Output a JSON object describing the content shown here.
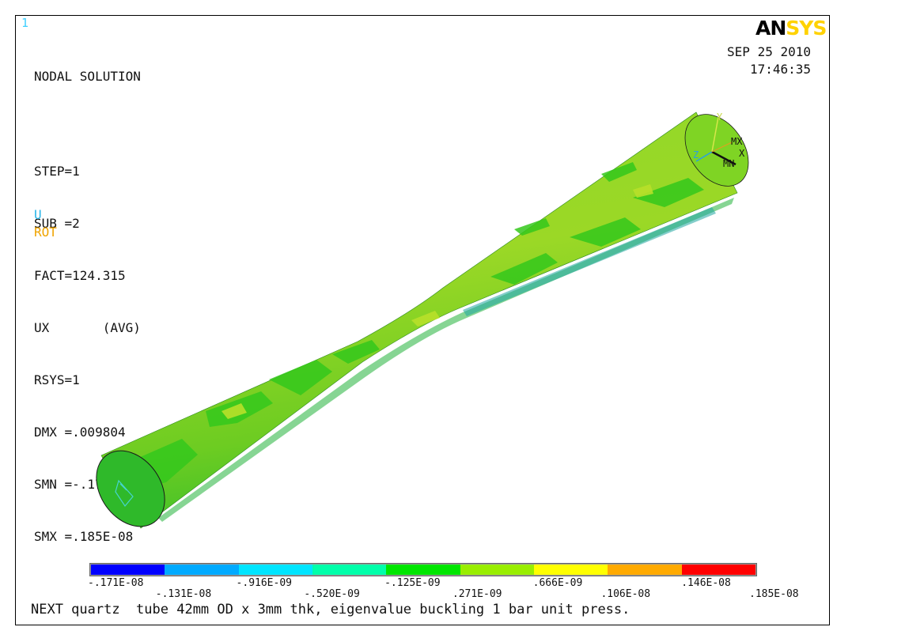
{
  "window_number": "1",
  "logo": {
    "part1": "AN",
    "part2": "SYS"
  },
  "date": "SEP 25 2010",
  "time": "17:46:35",
  "info": {
    "title": "NODAL SOLUTION",
    "step": "STEP=1",
    "sub": "SUB =2",
    "fact": "FACT=124.315",
    "ux": "UX       (AVG)",
    "rsys": "RSYS=1",
    "dmx": "DMX =.009804",
    "smn": "SMN =-.171E-08",
    "smx": "SMX =.185E-08"
  },
  "legend": {
    "u": "U",
    "rot": "ROT"
  },
  "triad_labels": {
    "y": "Y",
    "z": "Z",
    "x": "X",
    "mx": "MX",
    "mn": "MN"
  },
  "colors": [
    "#0000ff",
    "#00aaff",
    "#00e5ff",
    "#00ffaa",
    "#00e600",
    "#99ee00",
    "#ffff00",
    "#ffaa00",
    "#ff0000"
  ],
  "colorbar_ticks_top": [
    "-.171E-08",
    "-.916E-09",
    "-.125E-09",
    ".666E-09",
    ".146E-08"
  ],
  "colorbar_ticks_bottom": [
    "-.131E-08",
    "-.520E-09",
    ".271E-09",
    ".106E-08",
    ".185E-08"
  ],
  "caption": "NEXT quartz  tube 42mm OD x 3mm thk, eigenvalue buckling 1 bar unit press."
}
